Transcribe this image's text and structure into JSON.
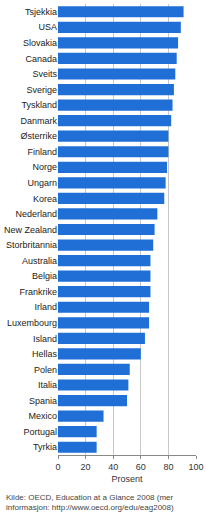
{
  "chart_data": {
    "type": "bar",
    "orientation": "horizontal",
    "categories": [
      "Tsjekkia",
      "USA",
      "Slovakia",
      "Canada",
      "Sveits",
      "Sverige",
      "Tyskland",
      "Danmark",
      "Østerrike",
      "Finland",
      "Norge",
      "Ungarn",
      "Korea",
      "Nederland",
      "New Zealand",
      "Storbritannia",
      "Australia",
      "Belgia",
      "Frankrike",
      "Irland",
      "Luxembourg",
      "Island",
      "Hellas",
      "Polen",
      "Italia",
      "Spania",
      "Mexico",
      "Portugal",
      "Tyrkia"
    ],
    "values": [
      91,
      89,
      87,
      86,
      85,
      84,
      83,
      82,
      80,
      80,
      79,
      78,
      77,
      72,
      70,
      69,
      67,
      67,
      67,
      66,
      66,
      63,
      60,
      52,
      51,
      50,
      33,
      28,
      28
    ],
    "color": "#1f6fd6",
    "xlim": [
      0,
      100
    ],
    "xticks": [
      0,
      20,
      40,
      60,
      80,
      100
    ],
    "x_label": "Prosent",
    "annotations": [
      "Kilde: OECD, Education at a Glance 2008 (mer",
      "informasjon: http://www.oecd.org/edu/eag2008)"
    ],
    "grid": true
  }
}
